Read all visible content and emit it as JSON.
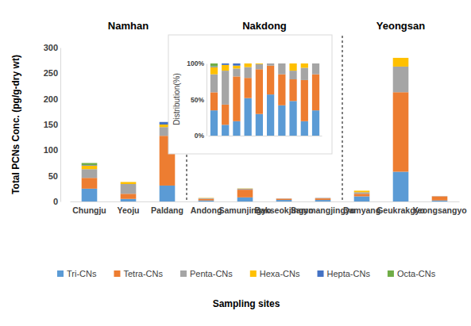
{
  "chart_data": [
    {
      "type": "bar",
      "stacked": true,
      "xlabel": "Sampling sites",
      "ylabel": "Total PCNs Conc. (pg/g-dry wt)",
      "categories": [
        "Chungju",
        "Yeoju",
        "Paldang",
        "Andong",
        "Samunjingyo",
        "Bakseokjingyo",
        "Sammangjingyo",
        "Damyang",
        "Geukrakgyo",
        "Yeongsangyo"
      ],
      "groups": [
        {
          "label": "Namhan",
          "categories": [
            "Chungju",
            "Yeoju",
            "Paldang"
          ]
        },
        {
          "label": "Nakdong",
          "categories": [
            "Andong",
            "Samunjingyo",
            "Bakseokjingyo",
            "Sammangjingyo"
          ]
        },
        {
          "label": "Yeongsan",
          "categories": [
            "Damyang",
            "Geukrakgyo",
            "Yeongsangyo"
          ]
        }
      ],
      "series": [
        {
          "name": "Tri-CNs",
          "color": "#5b9bd5",
          "values": [
            25,
            5,
            31,
            2,
            8,
            3,
            3,
            10,
            58,
            2
          ]
        },
        {
          "name": "Tetra-CNs",
          "color": "#ed7d31",
          "values": [
            21,
            10,
            97,
            3,
            15,
            2.5,
            3,
            5,
            155,
            8
          ]
        },
        {
          "name": "Penta-CNs",
          "color": "#a5a5a5",
          "values": [
            17,
            19,
            17,
            1.5,
            2,
            0.5,
            1,
            3,
            50,
            0.5
          ]
        },
        {
          "name": "Hexa-CNs",
          "color": "#ffc000",
          "values": [
            7,
            4,
            5,
            0.5,
            0.5,
            0,
            0,
            3,
            17,
            0
          ]
        },
        {
          "name": "Hepta-CNs",
          "color": "#4472c4",
          "values": [
            1,
            0,
            5,
            0,
            0,
            0,
            0,
            0,
            0,
            0
          ]
        },
        {
          "name": "Octa-CNs",
          "color": "#70ad47",
          "values": [
            4,
            0,
            0,
            0,
            0,
            0,
            0,
            0,
            0,
            0
          ]
        }
      ],
      "ylim": [
        0,
        300
      ],
      "yticks": [
        0,
        50,
        100,
        150,
        200,
        250,
        300
      ],
      "grid": false,
      "legend": "bottom"
    },
    {
      "type": "bar",
      "stacked": true,
      "ylabel": "Distribution(%)",
      "categories": [
        null,
        null,
        null,
        null,
        null,
        null,
        null,
        null,
        null,
        null
      ],
      "series": [
        {
          "color": "#5b9bd5",
          "values": [
            35,
            15,
            20,
            52,
            30,
            57,
            42,
            48,
            20,
            35
          ]
        },
        {
          "color": "#ed7d31",
          "values": [
            25,
            28,
            62,
            28,
            62,
            40,
            43,
            30,
            57,
            50
          ]
        },
        {
          "color": "#a5a5a5",
          "values": [
            25,
            47,
            11,
            15,
            7,
            3,
            15,
            12,
            17,
            15
          ]
        },
        {
          "color": "#ffc000",
          "values": [
            10,
            8,
            4,
            5,
            1,
            0,
            0,
            10,
            6,
            0
          ]
        },
        {
          "color": "#4472c4",
          "values": [
            1,
            2,
            3,
            0,
            0,
            0,
            0,
            0,
            0,
            0
          ]
        },
        {
          "color": "#70ad47",
          "values": [
            4,
            0,
            0,
            0,
            0,
            0,
            0,
            0,
            0,
            0
          ]
        }
      ],
      "ylim": [
        0,
        100
      ],
      "yticks": [
        {
          "value": 0,
          "label": "0%"
        },
        {
          "value": 50,
          "label": "50%"
        },
        {
          "value": 100,
          "label": "100%"
        }
      ],
      "grid": false
    }
  ]
}
